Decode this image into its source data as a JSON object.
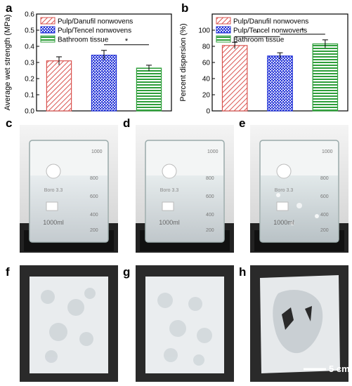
{
  "panel_labels": {
    "a": "a",
    "b": "b",
    "c": "c",
    "d": "d",
    "e": "e",
    "f": "f",
    "g": "g",
    "h": "h"
  },
  "colors": {
    "pulp_danufil": "#d9534f",
    "pulp_tencel": "#1f2fd6",
    "bathroom_tissue": "#2e9e3a"
  },
  "chart_data": [
    {
      "type": "bar",
      "title": "",
      "xlabel": "",
      "ylabel": "Average wet strength (MPa)",
      "ylim": [
        0.0,
        0.6
      ],
      "yticks": [
        "0.0",
        "0.1",
        "0.2",
        "0.3",
        "0.4",
        "0.5",
        "0.6"
      ],
      "categories": [
        "Pulp/Danufil nonwovens",
        "Pulp/Tencel nonwovens",
        "Bathroom tissue"
      ],
      "values": [
        0.31,
        0.345,
        0.265
      ],
      "errors": [
        0.025,
        0.03,
        0.018
      ],
      "legend": [
        "Pulp/Danufil nonwovens",
        "Pulp/Tencel nonwovens",
        "Bathroom tissue"
      ],
      "legend_position": "top-left",
      "patterns": [
        "diagonal-hatch",
        "dots",
        "horizontal-lines"
      ],
      "significance": [
        {
          "from": 1,
          "to": 2,
          "label": "*"
        }
      ]
    },
    {
      "type": "bar",
      "title": "",
      "xlabel": "",
      "ylabel": "Percent dispersion (%)",
      "ylim": [
        0,
        120
      ],
      "yticks": [
        "0",
        "20",
        "40",
        "60",
        "80",
        "100"
      ],
      "categories": [
        "Pulp/Danufil nonwovens",
        "Pulp/Tencel nonwovens",
        "Bathroom tissue"
      ],
      "values": [
        81,
        68,
        83
      ],
      "errors": [
        4,
        4,
        5
      ],
      "legend": [
        "Pulp/Danufil nonwovens",
        "Pulp/Tencel nonwovens",
        "Bathroom tissue"
      ],
      "legend_position": "top-left",
      "patterns": [
        "diagonal-hatch",
        "dots",
        "horizontal-lines"
      ],
      "significance": [
        {
          "from": 0,
          "to": 1,
          "label": "*"
        },
        {
          "from": 1,
          "to": 2,
          "label": "*"
        }
      ]
    }
  ],
  "beaker": {
    "volume_label": "1000ml",
    "brand": "Boro 3.3",
    "mark_top": "1000",
    "marks": [
      "800",
      "600",
      "400",
      "200"
    ]
  },
  "scale_bar": "5 cm"
}
